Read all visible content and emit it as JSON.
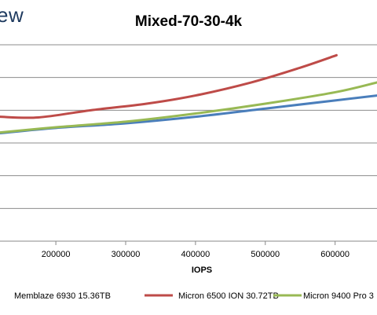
{
  "brand": {
    "logo_text": "ew"
  },
  "chart_data": {
    "type": "line",
    "title": "Mixed-70-30-4k",
    "xlabel": "IOPS",
    "ylabel": "",
    "x_ticks": [
      200000,
      300000,
      400000,
      500000,
      600000
    ],
    "xlim": [
      120000,
      660000
    ],
    "ylim": [
      0,
      6
    ],
    "grid": "horizontal",
    "legend_position": "bottom",
    "series": [
      {
        "name": "Memblaze 6930 15.36TB",
        "color": "#4a7ebb",
        "points": [
          [
            120000,
            3.3
          ],
          [
            200000,
            3.46
          ],
          [
            300000,
            3.6
          ],
          [
            400000,
            3.8
          ],
          [
            500000,
            4.05
          ],
          [
            600000,
            4.3
          ],
          [
            660000,
            4.45
          ]
        ]
      },
      {
        "name": "Micron 6500 ION 30.72TB",
        "color": "#be4b48",
        "points": [
          [
            120000,
            3.8
          ],
          [
            175000,
            3.78
          ],
          [
            250000,
            4.0
          ],
          [
            330000,
            4.2
          ],
          [
            400000,
            4.45
          ],
          [
            480000,
            4.85
          ],
          [
            550000,
            5.3
          ],
          [
            602000,
            5.68
          ]
        ]
      },
      {
        "name": "Micron 9400 Pro 3",
        "color": "#98b954",
        "points": [
          [
            120000,
            3.32
          ],
          [
            200000,
            3.48
          ],
          [
            300000,
            3.65
          ],
          [
            400000,
            3.9
          ],
          [
            500000,
            4.2
          ],
          [
            600000,
            4.55
          ],
          [
            660000,
            4.85
          ]
        ]
      }
    ]
  }
}
